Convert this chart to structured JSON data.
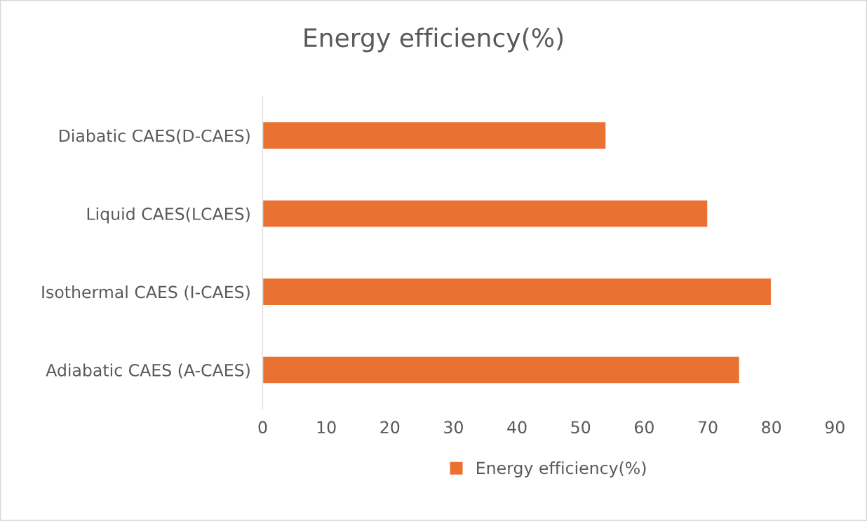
{
  "chart_data": {
    "type": "bar",
    "orientation": "horizontal",
    "title": "Energy efficiency(%)",
    "categories": [
      "Diabatic CAES(D-CAES)",
      "Liquid CAES(LCAES)",
      "Isothermal CAES (I-CAES)",
      "Adiabatic CAES (A-CAES)"
    ],
    "series": [
      {
        "name": "Energy efficiency(%)",
        "color": "#e97132",
        "values": [
          54,
          70,
          80,
          75
        ]
      }
    ],
    "xlim": [
      0,
      90
    ],
    "xticks": [
      0,
      10,
      20,
      30,
      40,
      50,
      60,
      70,
      80,
      90
    ],
    "grid": false,
    "legend": "bottom"
  }
}
